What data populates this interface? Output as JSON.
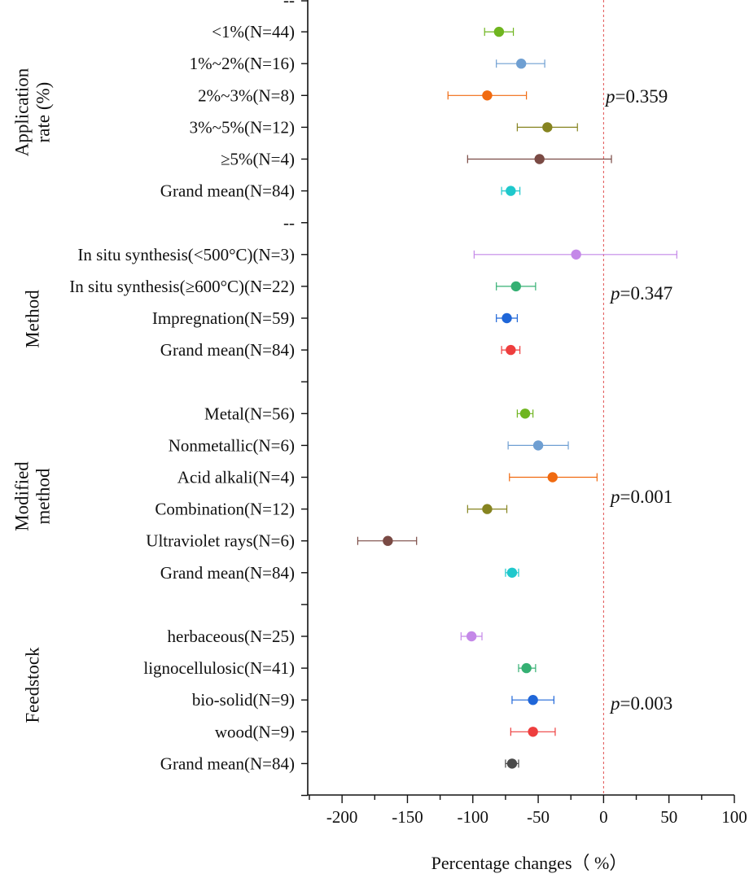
{
  "chart_data": {
    "type": "scatter",
    "subtype": "forest-plot",
    "xlabel": "Percentage changes（ %）",
    "ylabel": "",
    "xlim": [
      -225,
      100
    ],
    "xticks": [
      "-200",
      "-150",
      "-100",
      "-50",
      "0",
      "50",
      "100"
    ],
    "reference_line": 0,
    "groups": [
      {
        "name": "Application rate (%)",
        "name_lines": [
          "Application",
          "rate (%)"
        ],
        "p_label": "p",
        "p_value": "=0.359",
        "items": [
          {
            "label": "<1%(N=44)",
            "mean": -80,
            "lower": -91,
            "upper": -69,
            "color": "#6fb51f"
          },
          {
            "label": "1%~2%(N=16)",
            "mean": -63,
            "lower": -82,
            "upper": -45,
            "color": "#6f9fd2"
          },
          {
            "label": "2%~3%(N=8)",
            "mean": -89,
            "lower": -119,
            "upper": -59,
            "color": "#f06a10"
          },
          {
            "label": "3%~5%(N=12)",
            "mean": -43,
            "lower": -66,
            "upper": -20,
            "color": "#868420"
          },
          {
            "label": "≥5%(N=4)",
            "mean": -49,
            "lower": -104,
            "upper": 6,
            "color": "#7a4a44"
          },
          {
            "label": "Grand mean(N=84)",
            "mean": -71,
            "lower": -78,
            "upper": -64,
            "color": "#1fc8cc"
          }
        ]
      },
      {
        "name": "Method",
        "name_lines": [
          "Method"
        ],
        "p_label": "p",
        "p_value": "=0.347",
        "items": [
          {
            "label": "In situ synthesis(<500°C)(N=3)",
            "mean": -21,
            "lower": -99,
            "upper": 56,
            "color": "#c488e8"
          },
          {
            "label": "In situ synthesis(≥600°C)(N=22)",
            "mean": -67,
            "lower": -82,
            "upper": -52,
            "color": "#35b073"
          },
          {
            "label": "Impregnation(N=59)",
            "mean": -74,
            "lower": -82,
            "upper": -66,
            "color": "#1f66d8"
          },
          {
            "label": "Grand mean(N=84)",
            "mean": -71,
            "lower": -78,
            "upper": -64,
            "color": "#ee3e3e"
          }
        ]
      },
      {
        "name": "Modified method",
        "name_lines": [
          "Modified",
          "method"
        ],
        "p_label": "p",
        "p_value": "=0.001",
        "items": [
          {
            "label": "Metal(N=56)",
            "mean": -60,
            "lower": -66,
            "upper": -54,
            "color": "#6fb51f"
          },
          {
            "label": "Nonmetallic(N=6)",
            "mean": -50,
            "lower": -73,
            "upper": -27,
            "color": "#6f9fd2"
          },
          {
            "label": "Acid alkali(N=4)",
            "mean": -39,
            "lower": -72,
            "upper": -5,
            "color": "#f06a10"
          },
          {
            "label": "Combination(N=12)",
            "mean": -89,
            "lower": -104,
            "upper": -74,
            "color": "#868420"
          },
          {
            "label": "Ultraviolet rays(N=6)",
            "mean": -165,
            "lower": -188,
            "upper": -143,
            "color": "#7a4a44"
          },
          {
            "label": "Grand mean(N=84)",
            "mean": -70,
            "lower": -75,
            "upper": -65,
            "color": "#1fc8cc"
          }
        ]
      },
      {
        "name": "Feedstock",
        "name_lines": [
          "Feedstock"
        ],
        "p_label": "p",
        "p_value": "=0.003",
        "items": [
          {
            "label": "herbaceous(N=25)",
            "mean": -101,
            "lower": -109,
            "upper": -93,
            "color": "#c488e8"
          },
          {
            "label": "lignocellulosic(N=41)",
            "mean": -59,
            "lower": -65,
            "upper": -52,
            "color": "#35b073"
          },
          {
            "label": "bio-solid(N=9)",
            "mean": -54,
            "lower": -70,
            "upper": -38,
            "color": "#1f66d8"
          },
          {
            "label": "wood(N=9)",
            "mean": -54,
            "lower": -71,
            "upper": -37,
            "color": "#ee3e3e"
          },
          {
            "label": "Grand mean(N=84)",
            "mean": -70,
            "lower": -75,
            "upper": -65,
            "color": "#4a4a4a"
          }
        ]
      }
    ],
    "separator_labels": [
      "--",
      "--"
    ]
  }
}
